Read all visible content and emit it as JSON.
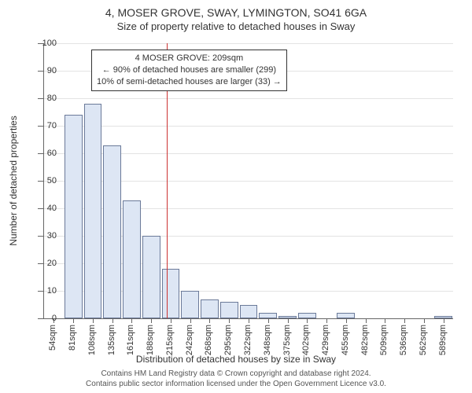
{
  "title_main": "4, MOSER GROVE, SWAY, LYMINGTON, SO41 6GA",
  "title_sub": "Size of property relative to detached houses in Sway",
  "y_axis_label": "Number of detached properties",
  "x_axis_label": "Distribution of detached houses by size in Sway",
  "ylim": [
    0,
    100
  ],
  "ytick_step": 10,
  "categories": [
    "54sqm",
    "81sqm",
    "108sqm",
    "135sqm",
    "161sqm",
    "188sqm",
    "215sqm",
    "242sqm",
    "268sqm",
    "295sqm",
    "322sqm",
    "348sqm",
    "375sqm",
    "402sqm",
    "429sqm",
    "455sqm",
    "482sqm",
    "509sqm",
    "536sqm",
    "562sqm",
    "589sqm"
  ],
  "values": [
    0,
    74,
    78,
    63,
    43,
    30,
    18,
    10,
    7,
    6,
    5,
    2,
    1,
    2,
    0,
    2,
    0,
    0,
    0,
    0,
    1
  ],
  "bar_color": "#dde6f4",
  "bar_border_color": "#6b7a99",
  "background_color": "#ffffff",
  "grid_color": "#666666",
  "ref_line_value_index": 5.8,
  "ref_line_color": "#cc3333",
  "annotation": {
    "line1": "4 MOSER GROVE: 209sqm",
    "line2": "← 90% of detached houses are smaller (299)",
    "line3": "10% of semi-detached houses are larger (33) →"
  },
  "footer_line1": "Contains HM Land Registry data © Crown copyright and database right 2024.",
  "footer_line2": "Contains public sector information licensed under the Open Government Licence v3.0."
}
